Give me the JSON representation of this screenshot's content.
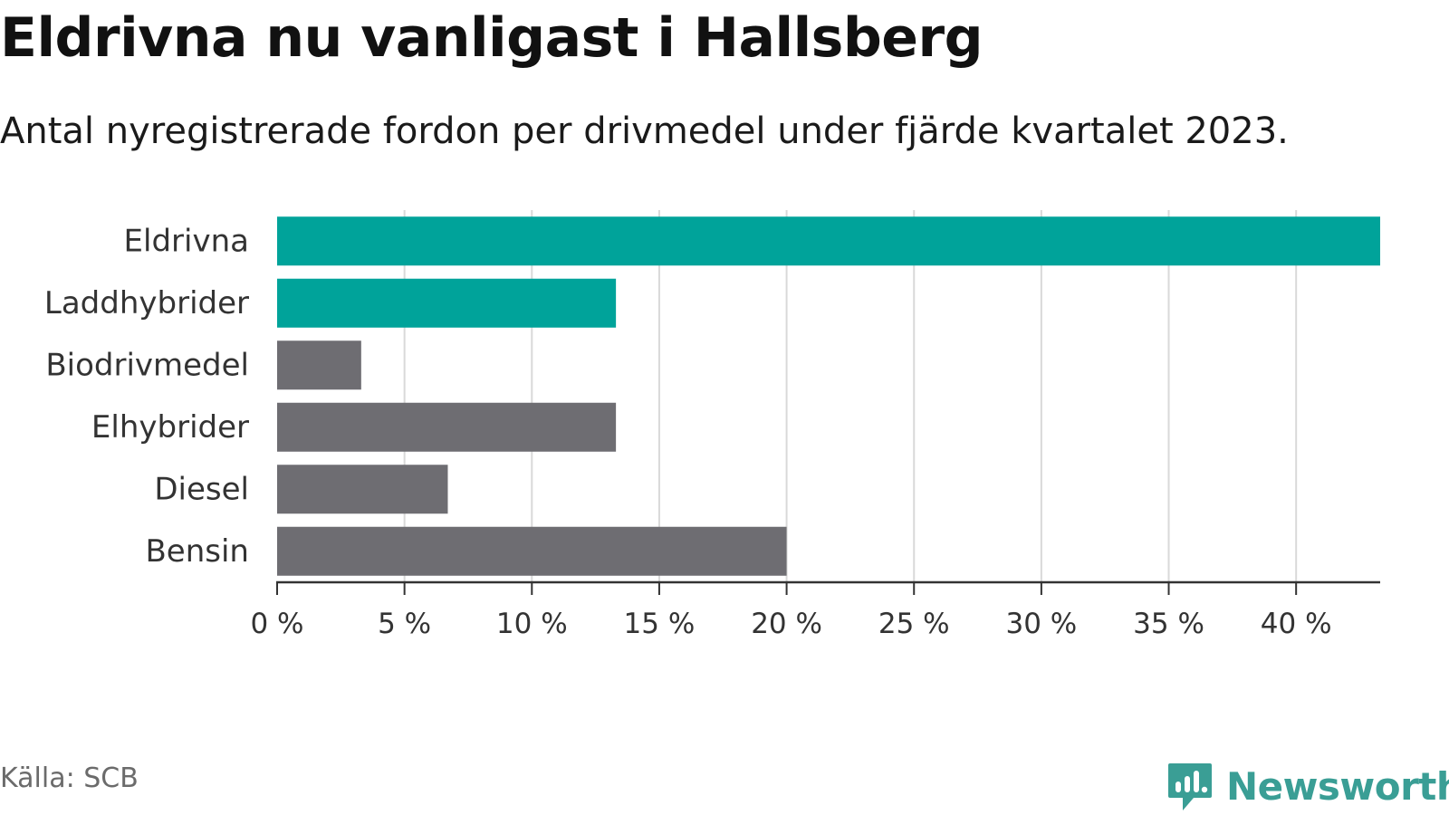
{
  "title": "Eldrivna nu vanligast i Hallsberg",
  "subtitle": "Antal nyregistrerade fordon per drivmedel under fjärde kvartalet 2023.",
  "source": "Källa: SCB",
  "brand": {
    "name": "Newsworthy",
    "icon": "newsworthy-logo-icon",
    "color": "#3a9e95"
  },
  "colors": {
    "highlight": "#00a39a",
    "default": "#6e6d72",
    "grid": "#d9d9d9",
    "axis": "#333333",
    "label": "#333333"
  },
  "chart_data": {
    "type": "bar",
    "orientation": "horizontal",
    "title": "Eldrivna nu vanligast i Hallsberg",
    "subtitle": "Antal nyregistrerade fordon per drivmedel under fjärde kvartalet 2023.",
    "xlabel": "",
    "ylabel": "",
    "unit": "%",
    "categories": [
      "Eldrivna",
      "Laddhybrider",
      "Biodrivmedel",
      "Elhybrider",
      "Diesel",
      "Bensin"
    ],
    "values": [
      43.3,
      13.3,
      3.3,
      13.3,
      6.7,
      20.0
    ],
    "highlighted": [
      true,
      true,
      false,
      false,
      false,
      false
    ],
    "xlim": [
      0,
      43.3
    ],
    "xticks": [
      0,
      5,
      10,
      15,
      20,
      25,
      30,
      35,
      40
    ],
    "xtick_labels": [
      "0 %",
      "5 %",
      "10 %",
      "15 %",
      "20 %",
      "25 %",
      "30 %",
      "35 %",
      "40 %"
    ],
    "grid": true,
    "legend": "none"
  }
}
